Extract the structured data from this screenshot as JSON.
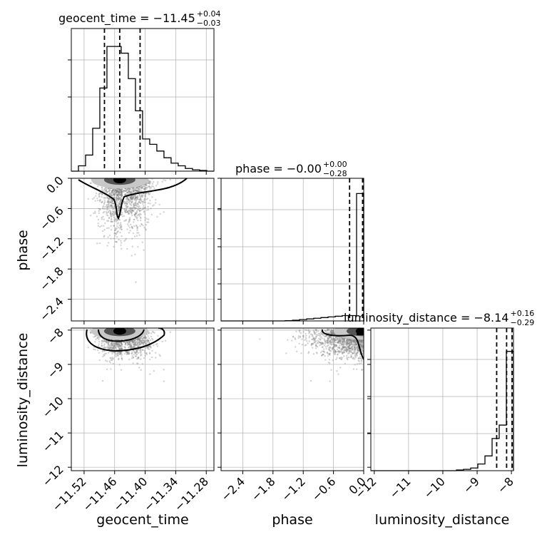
{
  "chart_data": {
    "type": "corner",
    "parameters": [
      "geocent_time",
      "phase",
      "luminosity_distance"
    ],
    "axis_labels": {
      "geocent_time": "geocent_time",
      "phase": "phase",
      "luminosity_distance": "luminosity_distance"
    },
    "titles": [
      {
        "param": "geocent_time",
        "text": "geocent_time = −11.45",
        "plus": "+0.04",
        "minus": "−0.03"
      },
      {
        "param": "phase",
        "text": "phase = −0.00",
        "plus": "+0.00",
        "minus": "−0.28"
      },
      {
        "param": "luminosity_distance",
        "text": "luminosity_distance = −8.14",
        "plus": "+0.16",
        "minus": "−0.29"
      }
    ],
    "ranges": {
      "geocent_time": [
        -11.5451,
        -11.2649
      ],
      "phase": [
        -2.83,
        0.0
      ],
      "luminosity_distance": [
        -12.1,
        -7.94
      ]
    },
    "ticks": {
      "geocent_time": {
        "values": [
          -11.52,
          -11.46,
          -11.4,
          -11.34,
          -11.28
        ],
        "labels": [
          "−11.52",
          "−11.46",
          "−11.40",
          "−11.34",
          "−11.28"
        ]
      },
      "phase": {
        "values": [
          -2.4,
          -1.8,
          -1.2,
          -0.6,
          0.0
        ],
        "labels": [
          "−2.4",
          "−1.8",
          "−1.2",
          "−0.6",
          "0.0"
        ]
      },
      "luminosity_distance_y": {
        "values": [
          -12,
          -11,
          -10,
          -9,
          -8
        ],
        "labels": [
          "−12",
          "−11",
          "−10",
          "−9",
          "−8"
        ]
      },
      "luminosity_distance_x": {
        "values": [
          -12,
          -11,
          -10,
          -9,
          -8
        ],
        "labels": [
          "−12",
          "−11",
          "−10",
          "−9",
          "−8"
        ]
      }
    },
    "quantiles": {
      "geocent_time": [
        -11.48,
        -11.45,
        -11.41
      ],
      "phase": [
        -0.28,
        -0.002,
        0.0
      ],
      "luminosity_distance": [
        -8.43,
        -8.14,
        -7.98
      ]
    },
    "histograms": {
      "geocent_time": {
        "edges": [
          -11.5451,
          -11.5311,
          -11.5171,
          -11.5031,
          -11.4891,
          -11.4751,
          -11.4611,
          -11.4471,
          -11.4331,
          -11.4191,
          -11.4051,
          -11.3911,
          -11.3771,
          -11.3631,
          -11.3491,
          -11.3351,
          -11.3211,
          -11.3071,
          -11.2931,
          -11.2789,
          -11.2649
        ],
        "counts": [
          0.0,
          0.04,
          0.12,
          0.32,
          0.62,
          0.93,
          0.93,
          0.88,
          0.69,
          0.45,
          0.24,
          0.2,
          0.15,
          0.1,
          0.06,
          0.04,
          0.02,
          0.01,
          0.005,
          0.0
        ]
      },
      "phase": {
        "edges": [
          -2.83,
          -2.6885,
          -2.547,
          -2.4055,
          -2.264,
          -2.1225,
          -1.981,
          -1.8395,
          -1.698,
          -1.5565,
          -1.415,
          -1.2735,
          -1.132,
          -0.9905,
          -0.849,
          -0.7075,
          -0.566,
          -0.4245,
          -0.283,
          -0.1415,
          0.0
        ],
        "counts": [
          0.0,
          0.0,
          0.0,
          0.0,
          0.0,
          0.0,
          0.0,
          0.0,
          0.0,
          0.002,
          0.005,
          0.01,
          0.015,
          0.02,
          0.025,
          0.03,
          0.035,
          0.04,
          0.04,
          0.95
        ]
      },
      "luminosity_distance": {
        "edges": [
          -12.1,
          -11.892,
          -11.684,
          -11.476,
          -11.268,
          -11.06,
          -10.852,
          -10.644,
          -10.436,
          -10.228,
          -10.02,
          -9.812,
          -9.604,
          -9.396,
          -9.188,
          -8.98,
          -8.772,
          -8.564,
          -8.356,
          -8.148,
          -7.94
        ],
        "counts": [
          0.0,
          0.0,
          0.0,
          0.0,
          0.0,
          0.0,
          0.0,
          0.0,
          0.0,
          0.0,
          0.0,
          0.0,
          0.005,
          0.01,
          0.02,
          0.05,
          0.11,
          0.24,
          0.34,
          0.89
        ]
      }
    },
    "scatter_center": {
      "geocent_time": -11.445,
      "phase": -0.1,
      "luminosity_distance": -8.15
    },
    "scatter_points": 1500,
    "grid": true,
    "colors": {
      "points": "#808080",
      "hist": "#000000",
      "density_dark": "#000000",
      "density_mid": "#555555",
      "density_light": "#c8c8c8"
    }
  }
}
